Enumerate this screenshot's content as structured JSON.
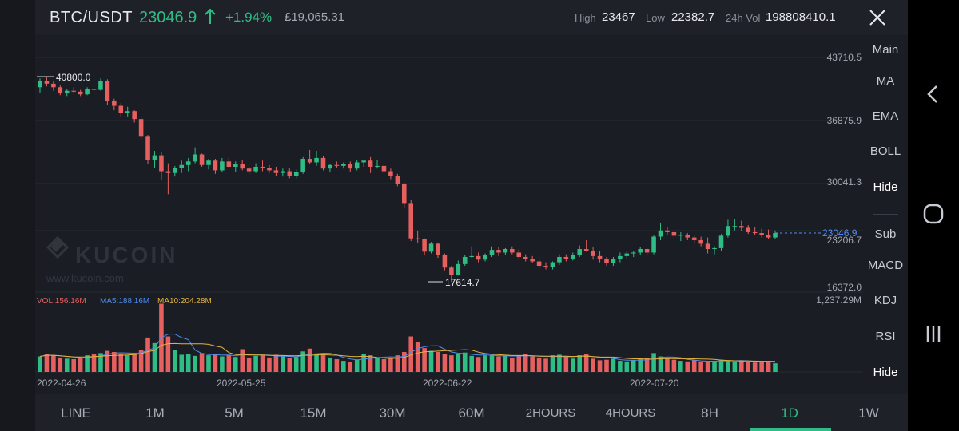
{
  "header": {
    "pair": "BTC/USDT",
    "price": "23046.9",
    "change": "+1.94%",
    "fiat_price": "£19,065.31",
    "high_label": "High",
    "high_value": "23467",
    "low_label": "Low",
    "low_value": "22382.7",
    "vol_label": "24h Vol",
    "vol_value": "198808410.1"
  },
  "colors": {
    "up": "#2ebd85",
    "down": "#e5605f",
    "ma5": "#4e8ef7",
    "ma10": "#e2b33c",
    "background": "#1b1d24"
  },
  "icons": {
    "up_arrow": "arrow-up-icon",
    "close": "close-icon",
    "watermark": "kucoin-logo-icon",
    "nav_back": "back-chevron-icon",
    "nav_home": "home-circle-icon",
    "nav_recents": "recents-icon"
  },
  "watermark": {
    "brand": "KUCOIN",
    "url": "www.kucoin.com"
  },
  "side_menu": {
    "main": "Main",
    "ma": "MA",
    "ema": "EMA",
    "boll": "BOLL",
    "hide_main": "Hide",
    "sub": "Sub",
    "macd": "MACD",
    "kdj": "KDJ",
    "rsi": "RSI",
    "hide_sub": "Hide"
  },
  "timeframes": [
    "LINE",
    "1M",
    "5M",
    "15M",
    "30M",
    "60M",
    "2HOURS",
    "4HOURS",
    "8H",
    "1D",
    "1W"
  ],
  "active_timeframe": "1D",
  "chart_data": {
    "type": "candlestick",
    "y_axis_labels": [
      "43710.5",
      "36875.9",
      "30041.3",
      "23206.7",
      "16372.0"
    ],
    "ylim": [
      16372.0,
      43710.5
    ],
    "x_axis_labels": [
      "2022-04-26",
      "2022-05-25",
      "2022-06-22",
      "2022-07-20"
    ],
    "high_marker": "40800.0",
    "low_marker": "17614.7",
    "last_price_tag": "23046.9",
    "volume_panel": {
      "vol_label": "VOL:156.16M",
      "ma5_label": "MA5:188.16M",
      "ma10_label": "MA10:204.28M",
      "max_label": "1,237.29M",
      "ylim_millions": [
        0,
        1237.29
      ]
    },
    "candles": [
      [
        39.6,
        40.6,
        39.0,
        40.3
      ],
      [
        40.3,
        40.8,
        39.7,
        40.0
      ],
      [
        40.0,
        40.3,
        39.2,
        39.6
      ],
      [
        39.6,
        39.8,
        38.7,
        38.9
      ],
      [
        38.9,
        39.4,
        38.6,
        39.2
      ],
      [
        39.2,
        39.6,
        38.9,
        39.1
      ],
      [
        39.1,
        39.3,
        38.6,
        38.8
      ],
      [
        38.8,
        39.6,
        38.7,
        39.4
      ],
      [
        39.4,
        39.8,
        39.0,
        39.3
      ],
      [
        39.3,
        40.6,
        39.2,
        40.3
      ],
      [
        40.3,
        40.5,
        37.6,
        38.0
      ],
      [
        38.0,
        38.3,
        37.0,
        37.5
      ],
      [
        37.5,
        37.8,
        36.2,
        36.7
      ],
      [
        36.7,
        37.4,
        36.3,
        36.9
      ],
      [
        36.9,
        37.0,
        35.6,
        36.0
      ],
      [
        36.0,
        36.2,
        33.6,
        34.0
      ],
      [
        34.0,
        34.2,
        30.9,
        31.4
      ],
      [
        31.4,
        32.4,
        30.5,
        31.9
      ],
      [
        31.9,
        32.3,
        29.1,
        30.1
      ],
      [
        30.1,
        31.0,
        27.5,
        29.9
      ],
      [
        29.9,
        30.7,
        29.5,
        30.5
      ],
      [
        30.5,
        31.3,
        29.9,
        30.8
      ],
      [
        30.8,
        31.6,
        30.1,
        31.2
      ],
      [
        31.2,
        32.8,
        31.0,
        32.0
      ],
      [
        32.0,
        32.1,
        30.6,
        30.8
      ],
      [
        30.8,
        31.5,
        30.3,
        31.3
      ],
      [
        31.3,
        31.5,
        29.8,
        30.2
      ],
      [
        30.2,
        31.6,
        30.0,
        31.2
      ],
      [
        31.2,
        31.6,
        30.4,
        30.6
      ],
      [
        30.6,
        31.2,
        30.0,
        30.9
      ],
      [
        30.9,
        31.4,
        30.2,
        30.4
      ],
      [
        30.4,
        30.6,
        29.8,
        30.1
      ],
      [
        30.1,
        31.0,
        29.9,
        30.6
      ],
      [
        30.6,
        31.3,
        30.1,
        30.5
      ],
      [
        30.5,
        30.8,
        29.9,
        30.2
      ],
      [
        30.2,
        30.6,
        29.6,
        29.9
      ],
      [
        29.9,
        30.4,
        29.5,
        30.1
      ],
      [
        30.1,
        30.4,
        29.3,
        29.6
      ],
      [
        29.6,
        30.3,
        29.3,
        30.0
      ],
      [
        30.0,
        31.7,
        29.8,
        31.5
      ],
      [
        31.5,
        32.5,
        30.9,
        31.1
      ],
      [
        31.1,
        32.4,
        30.7,
        31.6
      ],
      [
        31.6,
        31.8,
        30.2,
        30.4
      ],
      [
        30.4,
        30.9,
        30.0,
        30.8
      ],
      [
        30.8,
        31.2,
        30.5,
        30.7
      ],
      [
        30.7,
        31.1,
        30.4,
        30.9
      ],
      [
        30.9,
        31.2,
        30.0,
        30.4
      ],
      [
        30.4,
        31.4,
        30.2,
        31.1
      ],
      [
        31.1,
        31.4,
        30.6,
        31.3
      ],
      [
        31.3,
        31.7,
        29.9,
        30.6
      ],
      [
        30.6,
        31.4,
        30.4,
        30.7
      ],
      [
        30.7,
        30.9,
        29.8,
        30.1
      ],
      [
        30.1,
        30.4,
        29.2,
        29.6
      ],
      [
        29.6,
        29.8,
        28.4,
        28.7
      ],
      [
        28.7,
        28.8,
        25.9,
        26.5
      ],
      [
        26.5,
        26.9,
        22.2,
        22.5
      ],
      [
        22.5,
        23.4,
        22.0,
        22.4
      ],
      [
        22.4,
        22.5,
        20.6,
        21.0
      ],
      [
        21.0,
        22.1,
        20.8,
        21.9
      ],
      [
        21.9,
        22.0,
        20.3,
        20.6
      ],
      [
        20.6,
        20.8,
        18.9,
        19.2
      ],
      [
        19.2,
        19.4,
        17.6,
        18.4
      ],
      [
        18.4,
        20.0,
        18.3,
        19.6
      ],
      [
        19.6,
        20.6,
        19.4,
        20.4
      ],
      [
        20.4,
        21.6,
        20.3,
        20.5
      ],
      [
        20.5,
        20.9,
        19.8,
        20.1
      ],
      [
        20.1,
        20.8,
        19.9,
        20.6
      ],
      [
        20.6,
        21.6,
        20.4,
        21.2
      ],
      [
        21.2,
        21.5,
        20.5,
        20.9
      ],
      [
        20.9,
        21.4,
        20.6,
        21.3
      ],
      [
        21.3,
        21.6,
        20.7,
        20.9
      ],
      [
        20.9,
        21.3,
        20.1,
        20.4
      ],
      [
        20.4,
        20.7,
        19.9,
        20.2
      ],
      [
        20.2,
        20.5,
        19.7,
        19.9
      ],
      [
        19.9,
        20.4,
        19.1,
        19.4
      ],
      [
        19.4,
        19.8,
        19.0,
        19.3
      ],
      [
        19.3,
        19.9,
        19.0,
        19.8
      ],
      [
        19.8,
        20.7,
        19.5,
        20.4
      ],
      [
        20.4,
        20.7,
        19.9,
        20.2
      ],
      [
        20.2,
        20.9,
        20.0,
        20.6
      ],
      [
        20.6,
        21.7,
        20.4,
        21.3
      ],
      [
        21.3,
        22.3,
        21.0,
        21.1
      ],
      [
        21.1,
        21.5,
        20.1,
        20.5
      ],
      [
        20.5,
        21.1,
        19.8,
        20.2
      ],
      [
        20.2,
        20.4,
        19.4,
        19.7
      ],
      [
        19.7,
        20.4,
        19.4,
        20.2
      ],
      [
        20.2,
        20.9,
        19.8,
        20.5
      ],
      [
        20.5,
        21.1,
        20.2,
        20.8
      ],
      [
        20.8,
        21.1,
        20.4,
        20.9
      ],
      [
        20.9,
        21.5,
        20.6,
        21.3
      ],
      [
        21.3,
        21.4,
        20.6,
        20.9
      ],
      [
        20.9,
        22.9,
        20.7,
        22.7
      ],
      [
        22.7,
        24.2,
        22.3,
        23.4
      ],
      [
        23.4,
        23.8,
        22.9,
        23.2
      ],
      [
        23.2,
        23.4,
        22.6,
        22.8
      ],
      [
        22.8,
        23.2,
        22.2,
        22.9
      ],
      [
        22.9,
        23.1,
        22.3,
        22.6
      ],
      [
        22.6,
        22.8,
        21.9,
        22.3
      ],
      [
        22.3,
        22.7,
        21.6,
        21.9
      ],
      [
        21.9,
        22.6,
        20.8,
        21.3
      ],
      [
        21.3,
        21.6,
        20.7,
        21.4
      ],
      [
        21.4,
        23.0,
        21.1,
        22.8
      ],
      [
        22.8,
        24.6,
        22.6,
        23.9
      ],
      [
        23.9,
        24.7,
        23.4,
        23.9
      ],
      [
        23.9,
        24.5,
        23.3,
        23.7
      ],
      [
        23.7,
        24.0,
        23.0,
        23.2
      ],
      [
        23.2,
        23.8,
        22.9,
        23.1
      ],
      [
        23.1,
        23.6,
        22.6,
        22.9
      ],
      [
        22.9,
        23.5,
        22.4,
        22.6
      ],
      [
        22.6,
        23.4,
        22.4,
        23.1
      ]
    ],
    "volumes": [
      280,
      320,
      300,
      260,
      240,
      230,
      250,
      300,
      320,
      340,
      380,
      360,
      330,
      300,
      320,
      400,
      620,
      520,
      1230,
      640,
      400,
      310,
      330,
      290,
      340,
      300,
      310,
      280,
      300,
      270,
      410,
      260,
      290,
      300,
      260,
      310,
      280,
      250,
      270,
      370,
      420,
      330,
      300,
      260,
      230,
      200,
      180,
      220,
      320,
      300,
      260,
      230,
      250,
      300,
      360,
      640,
      540,
      430,
      380,
      360,
      330,
      300,
      320,
      350,
      290,
      270,
      300,
      310,
      280,
      290,
      260,
      300,
      320,
      280,
      260,
      240,
      300,
      310,
      280,
      240,
      300,
      330,
      240,
      210,
      220,
      240,
      200,
      190,
      210,
      230,
      250,
      340,
      280,
      250,
      220,
      200,
      190,
      210,
      180,
      190,
      200,
      220,
      210,
      190,
      200,
      180,
      170,
      190,
      180,
      156
    ]
  }
}
